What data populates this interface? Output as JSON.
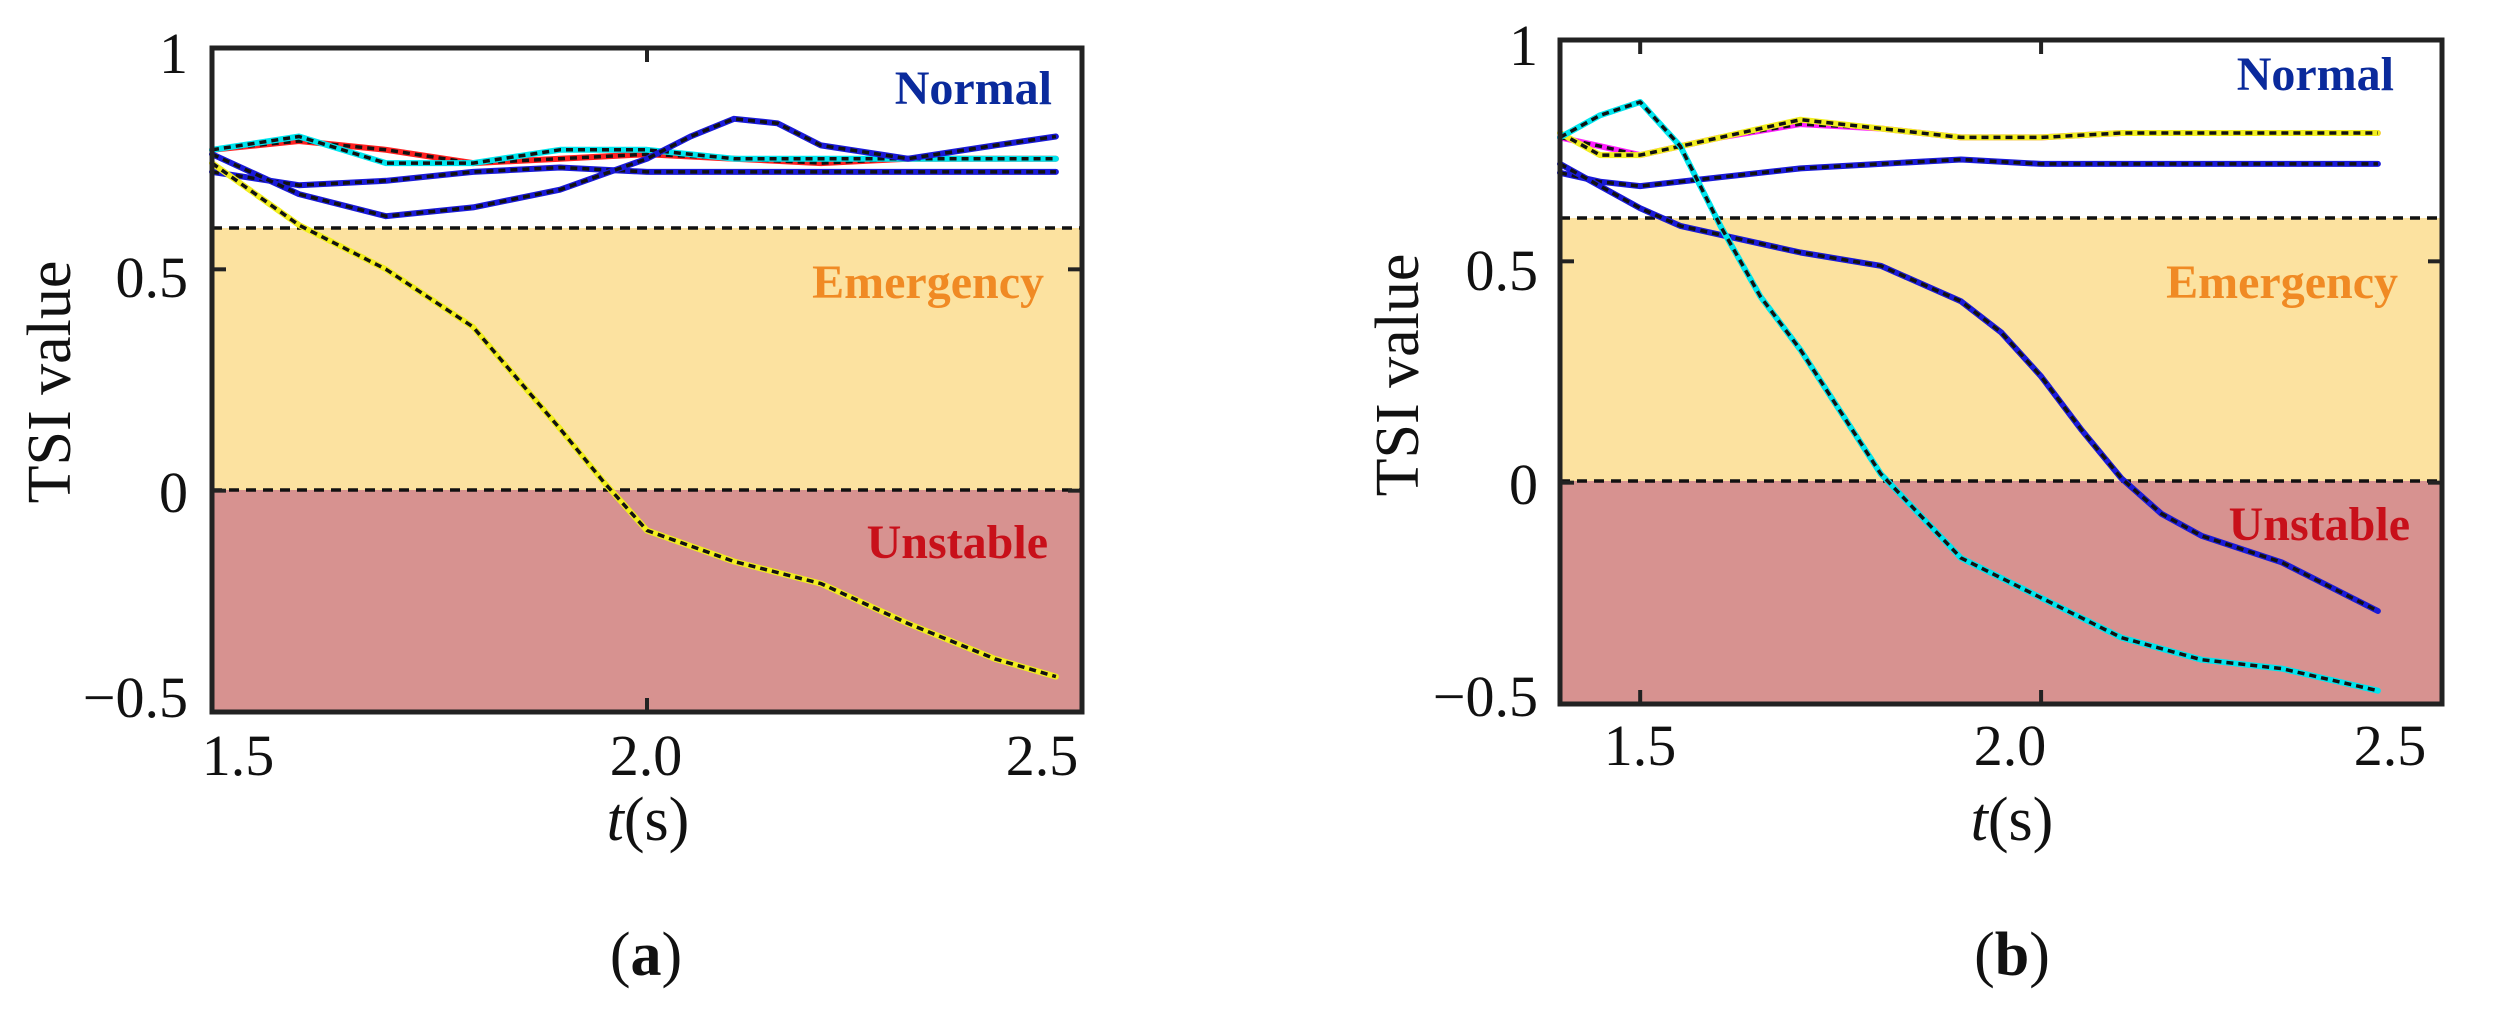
{
  "figure": {
    "colors": {
      "normal_label": "#0a2a9c",
      "emergency_label": "#f08a24",
      "unstable_label": "#c8101a",
      "emergency_band": "#fce2a0",
      "unstable_band": "#d79290",
      "threshold_line": "#111111"
    }
  },
  "chart_data": [
    {
      "panel": "a",
      "caption": "(a)",
      "caption_letter": "a",
      "type": "line",
      "xlabel_italic": "t",
      "xlabel_rest": "(s)",
      "ylabel": "TSI value",
      "xlim": [
        1.5,
        2.5
      ],
      "ylim": [
        -0.5,
        1
      ],
      "xticks": [
        1.5,
        2.0,
        2.5
      ],
      "xtick_labels": [
        "1.5",
        "2.0",
        "2.5"
      ],
      "yticks": [
        1,
        0.5,
        0,
        -0.5
      ],
      "ytick_labels": [
        "1",
        "0.5",
        "0",
        "−0.5"
      ],
      "thresholds": [
        0.6,
        0
      ],
      "zones": [
        {
          "name": "normal",
          "label": "Normal",
          "from": 0.6,
          "to": 1,
          "color": "#ffffff"
        },
        {
          "name": "emergency",
          "label": "Emergency",
          "from": 0,
          "to": 0.6,
          "color": "#fce2a0"
        },
        {
          "name": "unstable",
          "label": "Unstable",
          "from": -0.5,
          "to": 0,
          "color": "#d79290"
        }
      ],
      "series": [
        {
          "name": "curve-1",
          "color": "#ff2020",
          "dashed": true,
          "x": [
            1.5,
            1.6,
            1.7,
            1.8,
            1.9,
            2.0,
            2.1,
            2.2,
            2.3,
            2.4,
            2.47
          ],
          "y": [
            0.77,
            0.79,
            0.77,
            0.74,
            0.75,
            0.76,
            0.75,
            0.74,
            0.75,
            0.75,
            0.75
          ]
        },
        {
          "name": "curve-2",
          "color": "#00e5ee",
          "dashed": true,
          "x": [
            1.5,
            1.6,
            1.7,
            1.8,
            1.9,
            2.0,
            2.1,
            2.2,
            2.3,
            2.4,
            2.47
          ],
          "y": [
            0.77,
            0.8,
            0.74,
            0.74,
            0.77,
            0.77,
            0.75,
            0.75,
            0.75,
            0.75,
            0.75
          ]
        },
        {
          "name": "curve-3",
          "color": "#1a1ad8",
          "dashed": true,
          "x": [
            1.5,
            1.6,
            1.7,
            1.8,
            1.9,
            2.0,
            2.1,
            2.2,
            2.3,
            2.4,
            2.47
          ],
          "y": [
            0.72,
            0.69,
            0.7,
            0.72,
            0.73,
            0.72,
            0.72,
            0.72,
            0.72,
            0.72,
            0.72
          ]
        },
        {
          "name": "curve-4",
          "color": "#1a1ad8",
          "dashed": true,
          "x": [
            1.5,
            1.6,
            1.7,
            1.8,
            1.9,
            2.0,
            2.05,
            2.1,
            2.15,
            2.2,
            2.3,
            2.4,
            2.47
          ],
          "y": [
            0.76,
            0.67,
            0.62,
            0.64,
            0.68,
            0.75,
            0.8,
            0.84,
            0.83,
            0.78,
            0.75,
            0.78,
            0.8
          ]
        },
        {
          "name": "curve-5",
          "color": "#f2ee20",
          "dashed": true,
          "x": [
            1.5,
            1.55,
            1.6,
            1.7,
            1.8,
            1.9,
            1.95,
            2.0,
            2.1,
            2.2,
            2.3,
            2.4,
            2.47
          ],
          "y": [
            0.74,
            0.67,
            0.6,
            0.5,
            0.37,
            0.14,
            0.02,
            -0.09,
            -0.16,
            -0.21,
            -0.3,
            -0.38,
            -0.42
          ]
        }
      ],
      "annotations": [
        {
          "text": "Normal",
          "zone": "normal"
        },
        {
          "text": "Emergency",
          "zone": "emergency"
        },
        {
          "text": "Unstable",
          "zone": "unstable"
        }
      ]
    },
    {
      "panel": "b",
      "caption": "(b)",
      "caption_letter": "b",
      "type": "line",
      "xlabel_italic": "t",
      "xlabel_rest": "(s)",
      "ylabel": "TSI value",
      "xlim": [
        1.4,
        2.5
      ],
      "ylim": [
        -0.5,
        1
      ],
      "xticks": [
        1.5,
        2.0,
        2.5
      ],
      "xtick_labels": [
        "1.5",
        "2.0",
        "2.5"
      ],
      "yticks": [
        1,
        0.5,
        0,
        -0.5
      ],
      "ytick_labels": [
        "1",
        "0.5",
        "0",
        "−0.5"
      ],
      "thresholds": [
        0.6,
        0
      ],
      "zones": [
        {
          "name": "normal",
          "label": "Normal",
          "from": 0.6,
          "to": 1,
          "color": "#ffffff"
        },
        {
          "name": "emergency",
          "label": "Emergency",
          "from": 0,
          "to": 0.6,
          "color": "#fce2a0"
        },
        {
          "name": "unstable",
          "label": "Unstable",
          "from": -0.5,
          "to": 0,
          "color": "#d79290"
        }
      ],
      "series": [
        {
          "name": "curve-1",
          "color": "#ff20ff",
          "dashed": true,
          "x": [
            1.4,
            1.45,
            1.5,
            1.6,
            1.7,
            1.8,
            1.9,
            2.0,
            2.1,
            2.2,
            2.3,
            2.42
          ],
          "y": [
            0.78,
            0.76,
            0.74,
            0.78,
            0.81,
            0.8,
            0.78,
            0.78,
            0.79,
            0.79,
            0.79,
            0.79
          ]
        },
        {
          "name": "curve-2",
          "color": "#f2ee20",
          "dashed": true,
          "x": [
            1.4,
            1.45,
            1.5,
            1.6,
            1.7,
            1.8,
            1.9,
            2.0,
            2.1,
            2.2,
            2.3,
            2.42
          ],
          "y": [
            0.79,
            0.74,
            0.74,
            0.78,
            0.82,
            0.8,
            0.78,
            0.78,
            0.79,
            0.79,
            0.79,
            0.79
          ]
        },
        {
          "name": "curve-3",
          "color": "#1a1ad8",
          "dashed": true,
          "x": [
            1.4,
            1.45,
            1.5,
            1.6,
            1.7,
            1.8,
            1.9,
            2.0,
            2.1,
            2.2,
            2.3,
            2.42
          ],
          "y": [
            0.7,
            0.68,
            0.67,
            0.69,
            0.71,
            0.72,
            0.73,
            0.72,
            0.72,
            0.72,
            0.72,
            0.72
          ]
        },
        {
          "name": "curve-4",
          "color": "#1a1ad8",
          "dashed": true,
          "x": [
            1.4,
            1.45,
            1.5,
            1.55,
            1.6,
            1.7,
            1.8,
            1.9,
            1.95,
            2.0,
            2.05,
            2.1,
            2.15,
            2.2,
            2.3,
            2.42
          ],
          "y": [
            0.72,
            0.67,
            0.62,
            0.58,
            0.56,
            0.52,
            0.49,
            0.41,
            0.34,
            0.24,
            0.12,
            0.01,
            -0.07,
            -0.12,
            -0.18,
            -0.29
          ]
        },
        {
          "name": "curve-5",
          "color": "#00e5ee",
          "dashed": true,
          "x": [
            1.4,
            1.45,
            1.5,
            1.55,
            1.6,
            1.65,
            1.7,
            1.75,
            1.8,
            1.9,
            2.0,
            2.1,
            2.2,
            2.3,
            2.42
          ],
          "y": [
            0.78,
            0.83,
            0.86,
            0.76,
            0.58,
            0.42,
            0.3,
            0.16,
            0.02,
            -0.17,
            -0.26,
            -0.35,
            -0.4,
            -0.42,
            -0.47
          ]
        }
      ],
      "annotations": [
        {
          "text": "Normal",
          "zone": "normal"
        },
        {
          "text": "Emergency",
          "zone": "emergency"
        },
        {
          "text": "Unstable",
          "zone": "unstable"
        }
      ]
    }
  ]
}
